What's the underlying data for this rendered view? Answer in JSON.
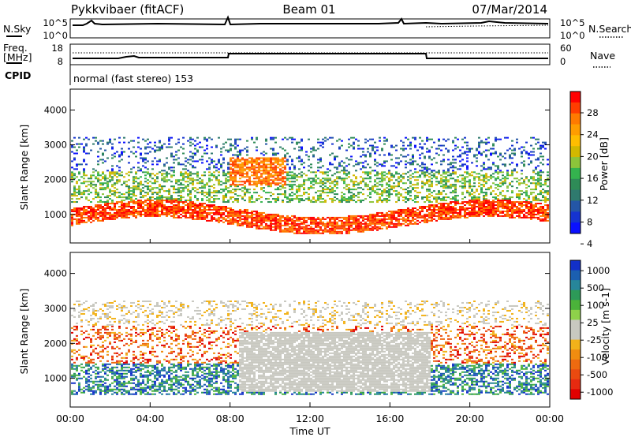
{
  "header": {
    "radar": "Pykkvibaer (fitACF)",
    "beam": "Beam 01",
    "date": "07/Mar/2014"
  },
  "panels": {
    "nsky": {
      "left_label": "N.Sky",
      "left_ticks": [
        "10^5",
        "10^0"
      ],
      "right_ticks": [
        "10^5",
        "10^0"
      ],
      "right_label": "N.Search"
    },
    "freq": {
      "left_label_1": "Freq.",
      "left_label_2": "[MHz]",
      "left_ticks": [
        "18",
        "8"
      ],
      "right_ticks": [
        "60",
        "0"
      ],
      "right_label": "Nave"
    },
    "cpid": {
      "left_label": "CPID",
      "mode_text": "normal (fast stereo) 153"
    }
  },
  "chart_data": [
    {
      "type": "heatmap",
      "name": "power",
      "ylabel": "Slant Range [km]",
      "xlabel": "",
      "yticks": [
        1000,
        2000,
        3000,
        4000
      ],
      "ylim": [
        180,
        4600
      ],
      "colorbar_label": "Power [dB]",
      "colorbar_ticks": [
        "28",
        "24",
        "20",
        "16",
        "12",
        "8",
        "4"
      ],
      "colorbar_colors": [
        "#ff0000",
        "#ff3d00",
        "#ff7a00",
        "#ff9d00",
        "#ffbd00",
        "#d2b800",
        "#8cc43a",
        "#34b34e",
        "#2e8b57",
        "#2f7a6e",
        "#2456a6",
        "#1533d0",
        "#0a10ff"
      ]
    },
    {
      "type": "heatmap",
      "name": "velocity",
      "ylabel": "Slant Range [km]",
      "xlabel": "Time UT",
      "yticks": [
        1000,
        2000,
        3000,
        4000
      ],
      "ylim": [
        180,
        4600
      ],
      "xticks": [
        "00:00",
        "04:00",
        "08:00",
        "12:00",
        "16:00",
        "20:00",
        "00:00"
      ],
      "colorbar_label": "Velocity [m s-1]",
      "colorbar_ticks": [
        "1000",
        "500",
        "100",
        "25",
        "-25",
        "-100",
        "-500",
        "-1000"
      ],
      "colorbar_colors": [
        "#1230c8",
        "#1b5fb0",
        "#27869a",
        "#2d9a58",
        "#4bb33a",
        "#8ed14a",
        "#c8c8c0",
        "#c8c8c0",
        "#f2b21a",
        "#f08c10",
        "#ee6a10",
        "#ea4a10",
        "#e62a10",
        "#e00000"
      ]
    }
  ]
}
